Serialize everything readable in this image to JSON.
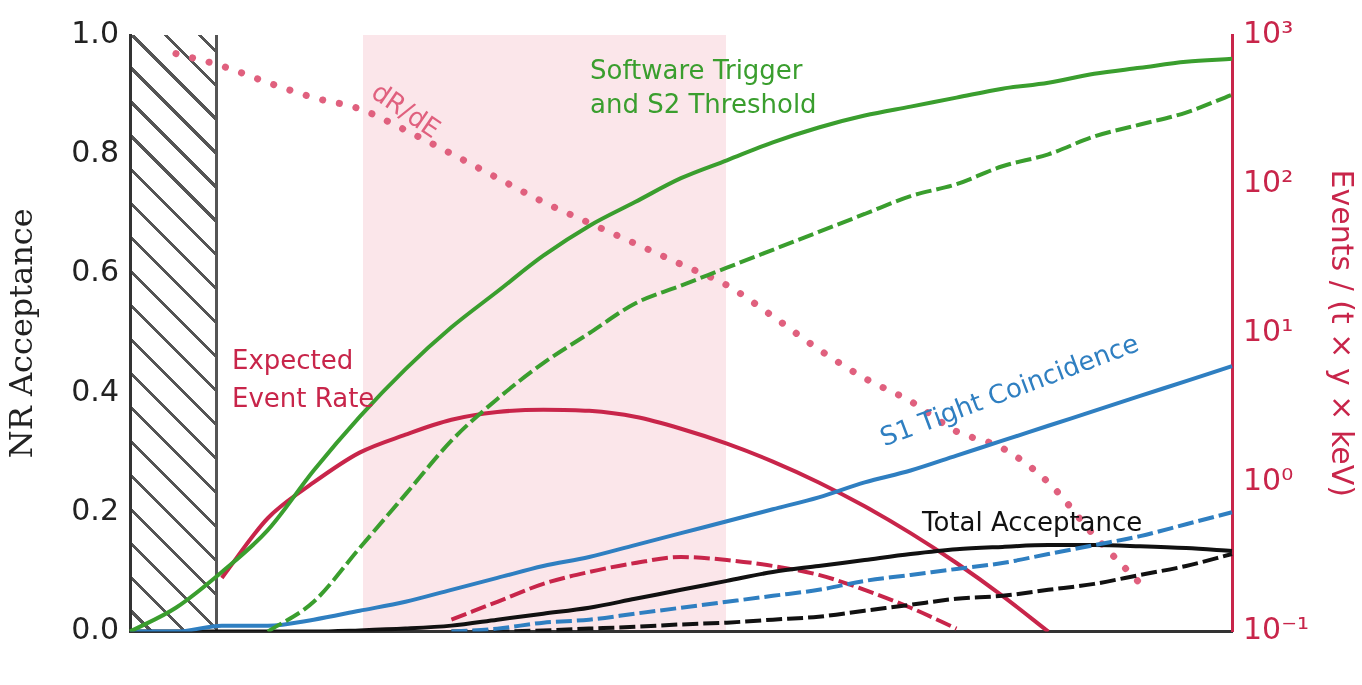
{
  "chart_data": {
    "type": "line",
    "ylabel": "NR Acceptance",
    "y2label": "Events / (t × y × keV)",
    "categories": [
      null,
      null,
      null,
      null,
      null,
      null,
      null,
      null,
      null,
      null,
      null,
      null,
      null,
      null,
      null,
      null,
      null,
      null,
      null,
      null,
      null,
      null,
      null,
      null,
      null
    ],
    "ylim": [
      0,
      1
    ],
    "yticks": [
      {
        "value": 0,
        "label": "0.0"
      },
      {
        "value": 0.2,
        "label": "0.2"
      },
      {
        "value": 0.4,
        "label": "0.4"
      },
      {
        "value": 0.6,
        "label": "0.6"
      },
      {
        "value": 0.8,
        "label": "0.8"
      },
      {
        "value": 1,
        "label": "1.0"
      }
    ],
    "y2lim": [
      0.1,
      1000
    ],
    "y2ticks": [
      {
        "value": 0.1,
        "label": "10⁻¹"
      },
      {
        "value": 1,
        "label": "10⁰"
      },
      {
        "value": 10,
        "label": "10¹"
      },
      {
        "value": 100,
        "label": "10²"
      },
      {
        "value": 1000,
        "label": "10³"
      }
    ],
    "log": "y2",
    "legend": false,
    "marker": "none",
    "series": [
      {
        "name": "Software Trigger and S2 Threshold",
        "color": "#3a9e2e",
        "line_style": "solid",
        "values": [
          0,
          0.04,
          0.1,
          0.17,
          0.27,
          0.36,
          0.44,
          0.51,
          0.57,
          0.63,
          0.68,
          0.72,
          0.76,
          0.79,
          0.82,
          0.845,
          0.865,
          0.88,
          0.895,
          0.91,
          0.92,
          0.935,
          0.945,
          0.955,
          0.96
        ]
      },
      {
        "color": "#3a9e2e",
        "line_style": "dashed",
        "values": [
          null,
          null,
          null,
          0,
          0.05,
          0.14,
          0.23,
          0.32,
          0.39,
          0.45,
          0.5,
          0.55,
          0.58,
          0.61,
          0.64,
          0.67,
          0.7,
          0.73,
          0.75,
          0.78,
          0.8,
          0.83,
          0.85,
          0.87,
          0.9
        ]
      },
      {
        "name": "S1 Tight Coincidence",
        "color": "#2f7fc1",
        "line_style": "solid",
        "values": [
          0,
          0,
          0.01,
          0.01,
          0.02,
          0.035,
          0.05,
          0.07,
          0.09,
          0.11,
          0.125,
          0.145,
          0.165,
          0.185,
          0.205,
          0.225,
          0.25,
          0.27,
          0.295,
          0.32,
          0.345,
          0.37,
          0.395,
          0.42,
          0.445
        ]
      },
      {
        "color": "#2f7fc1",
        "line_style": "dashed",
        "values": [
          null,
          null,
          null,
          null,
          null,
          null,
          null,
          0,
          0.005,
          0.015,
          0.02,
          0.03,
          0.04,
          0.05,
          0.06,
          0.07,
          0.085,
          0.095,
          0.105,
          0.115,
          0.13,
          0.145,
          0.16,
          0.18,
          0.2
        ]
      },
      {
        "name": "Total Acceptance",
        "color": "#111111",
        "line_style": "solid",
        "values": [
          0,
          0,
          0,
          0,
          0,
          0.002,
          0.005,
          0.01,
          0.02,
          0.03,
          0.04,
          0.055,
          0.07,
          0.085,
          0.1,
          0.11,
          0.12,
          0.13,
          0.138,
          0.142,
          0.145,
          0.145,
          0.143,
          0.14,
          0.135
        ]
      },
      {
        "color": "#111111",
        "line_style": "dashed",
        "values": [
          null,
          null,
          null,
          null,
          null,
          null,
          null,
          0,
          0,
          0.002,
          0.005,
          0.008,
          0.012,
          0.015,
          0.02,
          0.025,
          0.035,
          0.045,
          0.055,
          0.06,
          0.07,
          0.08,
          0.095,
          0.11,
          0.13
        ]
      },
      {
        "name": "Expected Event Rate",
        "color": "#c8254a",
        "line_style": "solid",
        "values": [
          null,
          null,
          0.09,
          0.19,
          0.25,
          0.3,
          0.33,
          0.355,
          0.368,
          0.372,
          0.37,
          0.36,
          0.34,
          0.315,
          0.285,
          0.25,
          0.21,
          0.165,
          0.115,
          0.06,
          0,
          null,
          null,
          null,
          null
        ]
      },
      {
        "color": "#c8254a",
        "line_style": "dashed",
        "values": [
          null,
          null,
          null,
          null,
          null,
          null,
          null,
          0.02,
          0.05,
          0.08,
          0.1,
          0.115,
          0.125,
          0.12,
          0.11,
          0.095,
          0.07,
          0.04,
          0.005,
          null,
          null,
          null,
          null,
          null,
          null
        ]
      },
      {
        "name": "dR/dE",
        "color": "#e0607e",
        "line_style": "dotted",
        "axis": "y2",
        "values": [
          null,
          750,
          620,
          480,
          380,
          320,
          230,
          160,
          110,
          76,
          55,
          40,
          29,
          21,
          13,
          7.8,
          5,
          3.5,
          2.2,
          1.7,
          1,
          0.44,
          0.21,
          null,
          null
        ]
      }
    ]
  }
}
